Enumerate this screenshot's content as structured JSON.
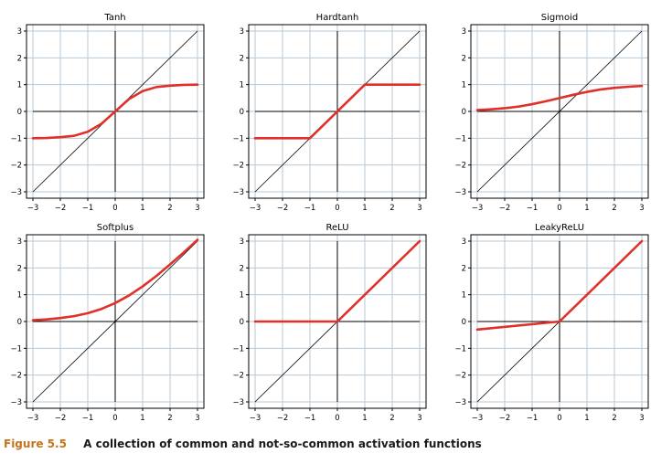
{
  "caption": {
    "label": "Figure 5.5",
    "text": "A collection of common and not-so-common activation functions"
  },
  "colors": {
    "curve": "#e0302a",
    "identity": "#000000",
    "grid": "#b8c8d6",
    "axis": "#000000"
  },
  "chart_data": [
    {
      "type": "line",
      "title": "Tanh",
      "xlim": [
        -3,
        3
      ],
      "ylim": [
        -3,
        3
      ],
      "xticks": [
        -3,
        -2,
        -1,
        0,
        1,
        2,
        3
      ],
      "yticks": [
        -3,
        -2,
        -1,
        0,
        1,
        2,
        3
      ],
      "grid": true,
      "identity_line": true,
      "x": [
        -3,
        -2.5,
        -2,
        -1.5,
        -1,
        -0.5,
        0,
        0.5,
        1,
        1.5,
        2,
        2.5,
        3
      ],
      "y": [
        -1.0,
        -0.99,
        -0.96,
        -0.91,
        -0.76,
        -0.46,
        0,
        0.46,
        0.76,
        0.91,
        0.96,
        0.99,
        1.0
      ]
    },
    {
      "type": "line",
      "title": "Hardtanh",
      "xlim": [
        -3,
        3
      ],
      "ylim": [
        -3,
        3
      ],
      "xticks": [
        -3,
        -2,
        -1,
        0,
        1,
        2,
        3
      ],
      "yticks": [
        -3,
        -2,
        -1,
        0,
        1,
        2,
        3
      ],
      "grid": true,
      "identity_line": true,
      "x": [
        -3,
        -1,
        1,
        3
      ],
      "y": [
        -1,
        -1,
        1,
        1
      ]
    },
    {
      "type": "line",
      "title": "Sigmoid",
      "xlim": [
        -3,
        3
      ],
      "ylim": [
        -3,
        3
      ],
      "xticks": [
        -3,
        -2,
        -1,
        0,
        1,
        2,
        3
      ],
      "yticks": [
        -3,
        -2,
        -1,
        0,
        1,
        2,
        3
      ],
      "grid": true,
      "identity_line": true,
      "x": [
        -3,
        -2.5,
        -2,
        -1.5,
        -1,
        -0.5,
        0,
        0.5,
        1,
        1.5,
        2,
        2.5,
        3
      ],
      "y": [
        0.05,
        0.08,
        0.12,
        0.18,
        0.27,
        0.38,
        0.5,
        0.62,
        0.73,
        0.82,
        0.88,
        0.92,
        0.95
      ]
    },
    {
      "type": "line",
      "title": "Softplus",
      "xlim": [
        -3,
        3
      ],
      "ylim": [
        -3,
        3
      ],
      "xticks": [
        -3,
        -2,
        -1,
        0,
        1,
        2,
        3
      ],
      "yticks": [
        -3,
        -2,
        -1,
        0,
        1,
        2,
        3
      ],
      "grid": true,
      "identity_line": true,
      "x": [
        -3,
        -2.5,
        -2,
        -1.5,
        -1,
        -0.5,
        0,
        0.5,
        1,
        1.5,
        2,
        2.5,
        3
      ],
      "y": [
        0.05,
        0.08,
        0.13,
        0.2,
        0.31,
        0.47,
        0.69,
        0.97,
        1.31,
        1.7,
        2.13,
        2.58,
        3.05
      ]
    },
    {
      "type": "line",
      "title": "ReLU",
      "xlim": [
        -3,
        3
      ],
      "ylim": [
        -3,
        3
      ],
      "xticks": [
        -3,
        -2,
        -1,
        0,
        1,
        2,
        3
      ],
      "yticks": [
        -3,
        -2,
        -1,
        0,
        1,
        2,
        3
      ],
      "grid": true,
      "identity_line": true,
      "x": [
        -3,
        0,
        3
      ],
      "y": [
        0,
        0,
        3
      ]
    },
    {
      "type": "line",
      "title": "LeakyReLU",
      "xlim": [
        -3,
        3
      ],
      "ylim": [
        -3,
        3
      ],
      "xticks": [
        -3,
        -2,
        -1,
        0,
        1,
        2,
        3
      ],
      "yticks": [
        -3,
        -2,
        -1,
        0,
        1,
        2,
        3
      ],
      "grid": true,
      "identity_line": true,
      "x": [
        -3,
        0,
        3
      ],
      "y": [
        -0.3,
        0,
        3
      ]
    }
  ]
}
